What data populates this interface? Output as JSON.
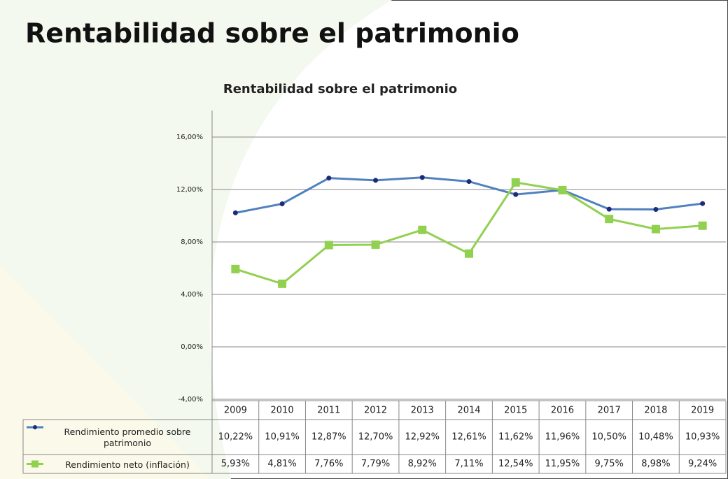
{
  "header": {
    "title": "Rentabilidad sobre el patrimonio"
  },
  "chart_data": {
    "type": "line",
    "title": "Rentabilidad sobre el patrimonio",
    "categories": [
      "2009",
      "2010",
      "2011",
      "2012",
      "2013",
      "2014",
      "2015",
      "2016",
      "2017",
      "2018",
      "2019"
    ],
    "series": [
      {
        "name": "Rendimiento promedio sobre patrimonio",
        "color": "#4f81bd",
        "marker_color": "#1f2a7a",
        "marker": "circle",
        "values": [
          10.22,
          10.91,
          12.87,
          12.7,
          12.92,
          12.61,
          11.62,
          11.96,
          10.5,
          10.48,
          10.93
        ],
        "value_labels": [
          "10,22%",
          "10,91%",
          "12,87%",
          "12,70%",
          "12,92%",
          "12,61%",
          "11,62%",
          "11,96%",
          "10,50%",
          "10,48%",
          "10,93%"
        ]
      },
      {
        "name": "Rendimiento neto (inflación)",
        "color": "#92d050",
        "marker_color": "#92d050",
        "marker": "square",
        "values": [
          5.93,
          4.81,
          7.76,
          7.79,
          8.92,
          7.11,
          12.54,
          11.95,
          9.75,
          8.98,
          9.24
        ],
        "value_labels": [
          "5,93%",
          "4,81%",
          "7,76%",
          "7,79%",
          "8,92%",
          "7,11%",
          "12,54%",
          "11,95%",
          "9,75%",
          "8,98%",
          "9,24%"
        ]
      }
    ],
    "ylim": [
      -4,
      18
    ],
    "yticks": [
      {
        "value": -4,
        "label": "-4,00%"
      },
      {
        "value": 0,
        "label": "0,00%"
      },
      {
        "value": 4,
        "label": "4,00%"
      },
      {
        "value": 8,
        "label": "8,00%"
      },
      {
        "value": 12,
        "label": "12,00%"
      },
      {
        "value": 16,
        "label": "16,00%"
      }
    ],
    "grid": true
  }
}
